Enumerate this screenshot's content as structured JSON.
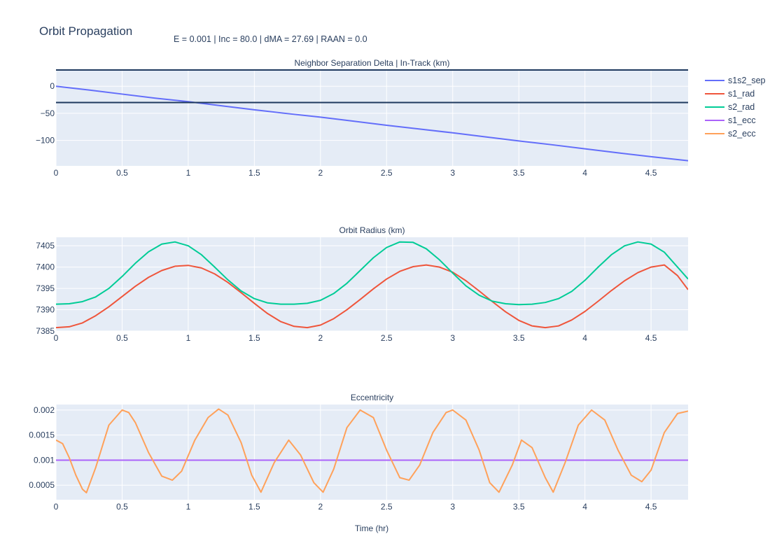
{
  "figure": {
    "title": "Orbit Propagation",
    "subtitle": "E = 0.001 | Inc = 80.0 | dMA = 27.69 | RAAN = 0.0",
    "xlabel": "Time (hr)"
  },
  "colors": {
    "plot_bg": "#E5ECF6",
    "grid": "#ffffff",
    "text": "#2a3f5f",
    "hline": "#1f3a5f"
  },
  "legend": {
    "placement": "right",
    "items": [
      {
        "name": "s1s2_sep",
        "color": "#636EFA"
      },
      {
        "name": "s1_rad",
        "color": "#EF553B"
      },
      {
        "name": "s2_rad",
        "color": "#00CC96"
      },
      {
        "name": "s1_ecc",
        "color": "#AB63FA"
      },
      {
        "name": "s2_ecc",
        "color": "#FFA15A"
      }
    ]
  },
  "chart_data": [
    {
      "type": "line",
      "title": "Neighbor Separation Delta | In-Track (km)",
      "xlim": [
        0,
        4.78
      ],
      "ylim": [
        -147,
        30
      ],
      "xticks": [
        0,
        0.5,
        1,
        1.5,
        2,
        2.5,
        3,
        3.5,
        4,
        4.5
      ],
      "yticks": [
        0,
        -50,
        -100
      ],
      "grid": true,
      "hlines": [
        30,
        -30
      ],
      "series": [
        {
          "name": "s1s2_sep",
          "color": "#636EFA",
          "x": [
            0,
            0.25,
            0.5,
            0.75,
            1.0,
            1.25,
            1.5,
            1.75,
            2.0,
            2.25,
            2.5,
            2.75,
            3.0,
            3.25,
            3.5,
            3.75,
            4.0,
            4.25,
            4.5,
            4.78
          ],
          "y": [
            0,
            -7,
            -14.5,
            -22,
            -28.5,
            -36,
            -43.5,
            -50.5,
            -57,
            -64.5,
            -72,
            -79,
            -86,
            -93.5,
            -101,
            -108,
            -115.5,
            -123,
            -130,
            -137.5
          ]
        }
      ]
    },
    {
      "type": "line",
      "title": "Orbit Radius (km)",
      "xlim": [
        0,
        4.78
      ],
      "ylim": [
        7385,
        7407
      ],
      "xticks": [
        0,
        0.5,
        1,
        1.5,
        2,
        2.5,
        3,
        3.5,
        4,
        4.5
      ],
      "yticks": [
        7385,
        7390,
        7395,
        7400,
        7405
      ],
      "grid": true,
      "series": [
        {
          "name": "s1_rad",
          "color": "#EF553B",
          "x": [
            0,
            0.1,
            0.2,
            0.3,
            0.4,
            0.5,
            0.6,
            0.7,
            0.8,
            0.9,
            1.0,
            1.1,
            1.2,
            1.3,
            1.4,
            1.5,
            1.6,
            1.7,
            1.8,
            1.9,
            2.0,
            2.1,
            2.2,
            2.3,
            2.4,
            2.5,
            2.6,
            2.7,
            2.8,
            2.9,
            3.0,
            3.1,
            3.2,
            3.3,
            3.4,
            3.5,
            3.6,
            3.7,
            3.8,
            3.9,
            4.0,
            4.1,
            4.2,
            4.3,
            4.4,
            4.5,
            4.6,
            4.7,
            4.78
          ],
          "y": [
            7385.8,
            7386.0,
            7386.9,
            7388.6,
            7390.7,
            7393.1,
            7395.5,
            7397.6,
            7399.2,
            7400.2,
            7400.4,
            7399.8,
            7398.4,
            7396.4,
            7394.0,
            7391.5,
            7389.1,
            7387.2,
            7386.1,
            7385.8,
            7386.4,
            7387.9,
            7390.0,
            7392.4,
            7394.9,
            7397.2,
            7399.0,
            7400.1,
            7400.5,
            7400.0,
            7398.8,
            7396.8,
            7394.4,
            7391.9,
            7389.5,
            7387.5,
            7386.2,
            7385.8,
            7386.2,
            7387.6,
            7389.6,
            7392.0,
            7394.5,
            7396.8,
            7398.7,
            7400.0,
            7400.5,
            7398.0,
            7394.7
          ]
        },
        {
          "name": "s2_rad",
          "color": "#00CC96",
          "x": [
            0,
            0.1,
            0.2,
            0.3,
            0.4,
            0.5,
            0.6,
            0.7,
            0.8,
            0.9,
            1.0,
            1.1,
            1.2,
            1.3,
            1.4,
            1.5,
            1.6,
            1.7,
            1.8,
            1.9,
            2.0,
            2.1,
            2.2,
            2.3,
            2.4,
            2.5,
            2.6,
            2.7,
            2.8,
            2.9,
            3.0,
            3.1,
            3.2,
            3.3,
            3.4,
            3.5,
            3.6,
            3.7,
            3.8,
            3.9,
            4.0,
            4.1,
            4.2,
            4.3,
            4.4,
            4.5,
            4.6,
            4.7,
            4.78
          ],
          "y": [
            7391.3,
            7391.4,
            7391.9,
            7393.0,
            7395.0,
            7397.8,
            7400.9,
            7403.6,
            7405.4,
            7405.9,
            7405.0,
            7402.9,
            7400.0,
            7397.0,
            7394.4,
            7392.6,
            7391.6,
            7391.3,
            7391.3,
            7391.5,
            7392.2,
            7393.8,
            7396.2,
            7399.2,
            7402.2,
            7404.6,
            7405.9,
            7405.8,
            7404.3,
            7401.7,
            7398.6,
            7395.6,
            7393.4,
            7392.0,
            7391.4,
            7391.2,
            7391.3,
            7391.7,
            7392.6,
            7394.3,
            7396.9,
            7400.0,
            7402.9,
            7405.0,
            7405.9,
            7405.4,
            7403.5,
            7400.0,
            7397.2
          ]
        }
      ]
    },
    {
      "type": "line",
      "title": "Eccentricity",
      "xlim": [
        0,
        4.78
      ],
      "ylim": [
        0.00021,
        0.00211
      ],
      "xticks": [
        0,
        0.5,
        1,
        1.5,
        2,
        2.5,
        3,
        3.5,
        4,
        4.5
      ],
      "yticks": [
        0.0005,
        0.001,
        0.0015,
        0.002
      ],
      "grid": true,
      "series": [
        {
          "name": "s1_ecc",
          "color": "#AB63FA",
          "x": [
            0,
            4.78
          ],
          "y": [
            0.001,
            0.001
          ]
        },
        {
          "name": "s2_ecc",
          "color": "#FFA15A",
          "x": [
            0,
            0.05,
            0.1,
            0.15,
            0.2,
            0.23,
            0.3,
            0.4,
            0.5,
            0.55,
            0.6,
            0.7,
            0.8,
            0.88,
            0.95,
            1.05,
            1.15,
            1.23,
            1.3,
            1.4,
            1.48,
            1.55,
            1.65,
            1.76,
            1.85,
            1.95,
            2.02,
            2.1,
            2.2,
            2.3,
            2.4,
            2.5,
            2.6,
            2.67,
            2.75,
            2.85,
            2.95,
            3.0,
            3.1,
            3.2,
            3.28,
            3.35,
            3.45,
            3.52,
            3.6,
            3.7,
            3.76,
            3.85,
            3.95,
            4.05,
            4.15,
            4.25,
            4.35,
            4.43,
            4.5,
            4.6,
            4.7,
            4.78
          ],
          "y": [
            0.0014,
            0.00133,
            0.00105,
            0.0007,
            0.00042,
            0.00035,
            0.00085,
            0.0017,
            0.002,
            0.00195,
            0.00175,
            0.00115,
            0.00068,
            0.0006,
            0.00078,
            0.0014,
            0.00185,
            0.00202,
            0.0019,
            0.00135,
            0.0007,
            0.00036,
            0.00095,
            0.0014,
            0.0011,
            0.00055,
            0.00036,
            0.00082,
            0.00165,
            0.002,
            0.00185,
            0.0012,
            0.00065,
            0.0006,
            0.0009,
            0.00155,
            0.00195,
            0.002,
            0.0018,
            0.0012,
            0.00055,
            0.00036,
            0.0009,
            0.0014,
            0.00125,
            0.00065,
            0.00036,
            0.00095,
            0.0017,
            0.002,
            0.0018,
            0.0012,
            0.0007,
            0.00057,
            0.0008,
            0.00155,
            0.00193,
            0.00198
          ]
        }
      ]
    }
  ]
}
